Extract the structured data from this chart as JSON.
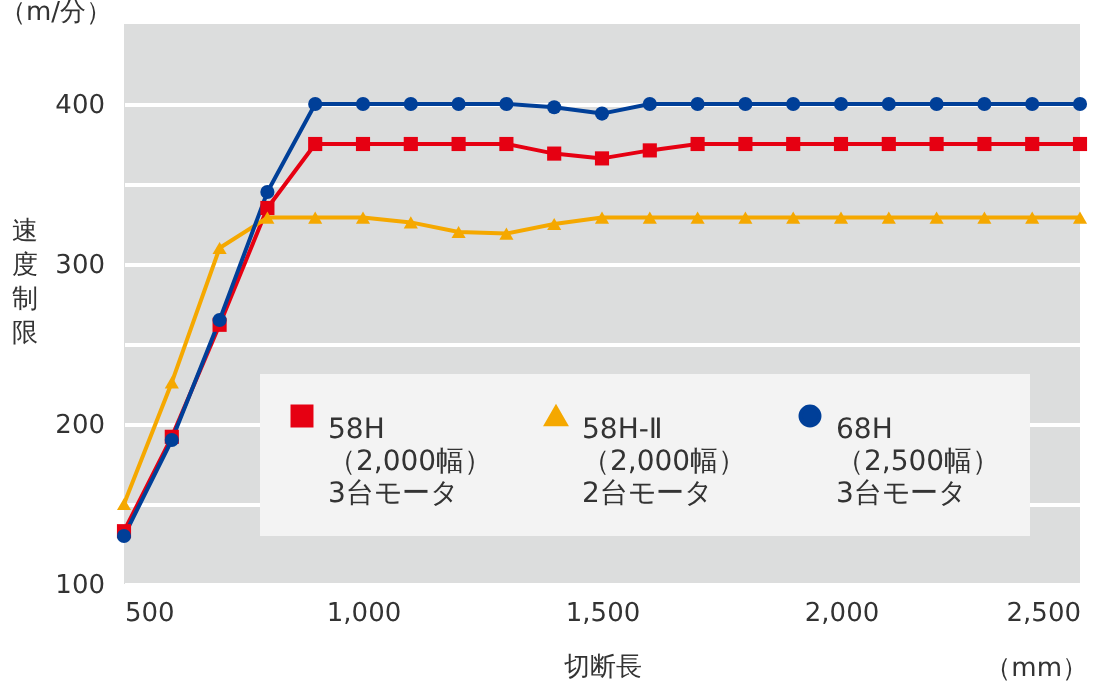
{
  "chart_data": {
    "type": "line",
    "xlabel": "切断長",
    "ylabel": "速度制限",
    "annotations": [
      "（m/分）",
      "（mm）"
    ],
    "x": [
      500,
      600,
      700,
      800,
      900,
      1000,
      1100,
      1200,
      1300,
      1400,
      1500,
      1600,
      1700,
      1800,
      1900,
      2000,
      2100,
      2200,
      2300,
      2400,
      2500
    ],
    "series": [
      {
        "name": "58H\n（2,000幅）\n3台モータ",
        "color": "#e60012",
        "marker": "square",
        "values": [
          133,
          192,
          262,
          335,
          375,
          375,
          375,
          375,
          375,
          369,
          366,
          371,
          375,
          375,
          375,
          375,
          375,
          375,
          375,
          375,
          375
        ]
      },
      {
        "name": "58H-Ⅱ\n（2,000幅）\n2台モータ",
        "color": "#f5a800",
        "marker": "triangle",
        "values": [
          150,
          226,
          310,
          329,
          329,
          329,
          326,
          320,
          319,
          325,
          329,
          329,
          329,
          329,
          329,
          329,
          329,
          329,
          329,
          329,
          329
        ]
      },
      {
        "name": "68H\n（2,500幅）\n3台モータ",
        "color": "#003f98",
        "marker": "circle",
        "values": [
          130,
          190,
          265,
          345,
          400,
          400,
          400,
          400,
          400,
          398,
          394,
          400,
          400,
          400,
          400,
          400,
          400,
          400,
          400,
          400,
          400
        ]
      }
    ],
    "xlim": [
      500,
      2500
    ],
    "xticks": [
      500,
      {
        "value": 1000,
        "label": "1,000"
      },
      {
        "value": 1500,
        "label": "1,500"
      },
      {
        "value": 2000,
        "label": "2,000"
      },
      {
        "value": 2500,
        "label": "2,500"
      }
    ],
    "ylim": [
      100,
      450
    ],
    "yticks": [
      100,
      {
        "value": 150,
        "label": null
      },
      200,
      {
        "value": 250,
        "label": null
      },
      300,
      {
        "value": 350,
        "label": null
      },
      400
    ],
    "grid": "y",
    "legend": "bottom right",
    "line_style": "solid"
  }
}
